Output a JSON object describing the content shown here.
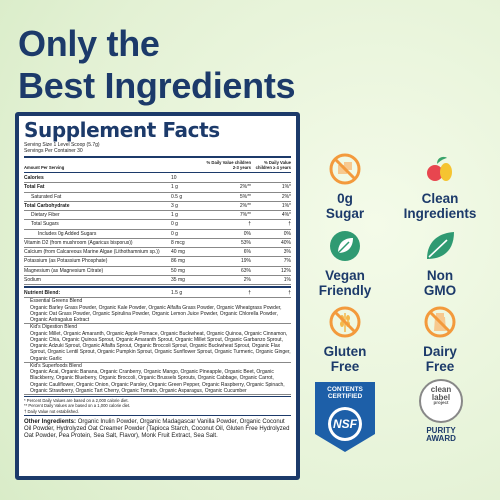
{
  "header": {
    "title_lines": [
      "Only the",
      "Best Ingredients"
    ]
  },
  "facts": {
    "title": "Supplement Facts",
    "serving_size": "Serving Size 1 Level Scoop (5.7g)",
    "servings_per_container": "Servings Per Container 30",
    "columns": [
      "Amount Per Serving",
      "% Daily Value children 2-3 years",
      "% Daily Value children ≥ 4 years"
    ],
    "rows": [
      {
        "name": "Calories",
        "amount": "10"
      },
      {
        "name": "Total Fat",
        "amount": "1 g",
        "dv_2_3": "2%**",
        "dv_4": "1%*",
        "sub": [
          {
            "name": "Saturated Fat",
            "amount": "0.5 g",
            "dv_2_3": "5%**",
            "dv_4": "2%*"
          }
        ]
      },
      {
        "name": "Total Carbohydrate",
        "amount": "3 g",
        "dv_2_3": "2%**",
        "dv_4": "1%*",
        "sub": [
          {
            "name": "Dietary Fiber",
            "amount": "1 g",
            "dv_2_3": "7%**",
            "dv_4": "4%*"
          },
          {
            "name": "Total Sugars",
            "amount": "0 g",
            "dv_2_3": "†",
            "dv_4": "†",
            "sub": [
              {
                "name": "Includes 0g Added Sugars",
                "amount": "0 g",
                "dv_2_3": "0%",
                "dv_4": "0%"
              }
            ]
          }
        ]
      },
      {
        "name": "Vitamin D2 (from mushroom (Agaricus bisporus))",
        "amount": "8 mcg",
        "dv_2_3": "53%",
        "dv_4": "40%"
      },
      {
        "name": "Calcium (from Calcareous Marine Algae (Lithothamnium sp.))",
        "amount": "40 mg",
        "dv_2_3": "6%",
        "dv_4": "3%"
      },
      {
        "name": "Potassium (as Potassium Phosphate)",
        "amount": "86 mg",
        "dv_2_3": "19%",
        "dv_4": "7%"
      },
      {
        "name": "Magnesium (as Magnesium Citrate)",
        "amount": "50 mg",
        "dv_2_3": "63%",
        "dv_4": "12%"
      },
      {
        "name": "Sodium",
        "amount": "35 mg",
        "dv_2_3": "2%",
        "dv_4": "1%"
      }
    ],
    "blend": {
      "name": "Nutrient Blend:",
      "amount": "1.5 g",
      "dv_2_3": "†",
      "dv_4": "†",
      "parts": [
        {
          "name": "Essential Greens Blend",
          "ingredients": "Organic Barley Grass Powder, Organic Kale Powder, Organic Alfalfa Grass Powder, Organic Wheatgrass Powder, Organic Oat Grass Powder, Organic Spirulina Powder, Organic Lemon Juice Powder, Organic Chlorella Powder, Organic Astragalus Extract"
        },
        {
          "name": "Kid's Digestion Blend",
          "ingredients": "Organic Millet, Organic Amaranth, Organic Apple Pomace, Organic Buckwheat, Organic Quinoa, Organic Cinnamon, Organic Chia, Organic Quinoa Sprout, Organic Amaranth Sprout, Organic Millet Sprout, Organic Garbanzo Sprout, Organic Adzuki Sprout, Organic Alfalfa Sprout, Organic Broccoli Sprout, Organic Buckwheat Sprout, Organic Flax Sprout, Organic Lentil Sprout, Organic Pumpkin Sprout, Organic Sunflower Sprout, Organic Turmeric, Organic Ginger, Organic Garlic"
        },
        {
          "name": "Kid's Superfoods Blend",
          "ingredients": "Organic Acai, Organic Banana, Organic Cranberry, Organic Mango, Organic Pineapple, Organic Beet, Organic Blackberry, Organic Blueberry, Organic Broccoli, Organic Brussels Sprouts, Organic Cabbage, Organic Carrot, Organic Cauliflower, Organic Onion, Organic Parsley, Organic Green Pepper, Organic Raspberry, Organic Spinach, Organic Strawberry, Organic Tart Cherry, Organic Tomato, Organic Asparagus, Organic Cucumber"
        }
      ]
    },
    "footnotes": [
      "* Percent Daily Values are based on a 2,000 calorie diet.",
      "** Percent Daily Values are based on a 1,000 calorie diet.",
      "† Daily Value not established."
    ],
    "other_ingredients": {
      "label": "Other Ingredients:",
      "text": "Organic Inulin Powder, Organic Madagascar Vanilla Powder, Organic Coconut Oil Powder, Hydrolyzed Oat Creamer Powder (Tapioca Starch, Coconut Oil, Gluten Free Hydrolyzed Oat Powder, Pea Protein, Sea Salt, Flavor), Monk Fruit Extract, Sea Salt."
    }
  },
  "badges": [
    {
      "lines": [
        "0g",
        "Sugar"
      ]
    },
    {
      "lines": [
        "Clean",
        "Ingredients"
      ]
    },
    {
      "lines": [
        "Vegan",
        "Friendly"
      ]
    },
    {
      "lines": [
        "Non",
        "GMO"
      ]
    },
    {
      "lines": [
        "Gluten",
        "Free"
      ]
    },
    {
      "lines": [
        "Dairy",
        "Free"
      ]
    }
  ],
  "certifications": {
    "nsf": {
      "top": "CONTENTS CERTIFIED",
      "mark": "NSF"
    },
    "clean_label": {
      "lines": [
        "clean",
        "label",
        "project"
      ],
      "award": [
        "PURITY",
        "AWARD"
      ]
    }
  }
}
